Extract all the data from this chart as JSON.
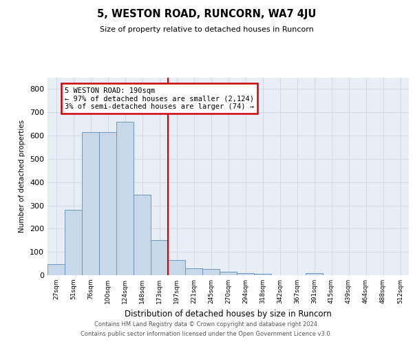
{
  "title": "5, WESTON ROAD, RUNCORN, WA7 4JU",
  "subtitle": "Size of property relative to detached houses in Runcorn",
  "xlabel": "Distribution of detached houses by size in Runcorn",
  "ylabel": "Number of detached properties",
  "bar_labels": [
    "27sqm",
    "51sqm",
    "76sqm",
    "100sqm",
    "124sqm",
    "148sqm",
    "173sqm",
    "197sqm",
    "221sqm",
    "245sqm",
    "270sqm",
    "294sqm",
    "318sqm",
    "342sqm",
    "367sqm",
    "391sqm",
    "415sqm",
    "439sqm",
    "464sqm",
    "488sqm",
    "512sqm"
  ],
  "bar_values": [
    46,
    280,
    615,
    615,
    660,
    347,
    150,
    65,
    30,
    27,
    14,
    10,
    7,
    0,
    0,
    10,
    0,
    0,
    0,
    0,
    0
  ],
  "bar_color": "#c8d8e8",
  "bar_edge_color": "#5b8db8",
  "property_line_x": 7.0,
  "annotation_text": "5 WESTON ROAD: 190sqm\n← 97% of detached houses are smaller (2,124)\n3% of semi-detached houses are larger (74) →",
  "annotation_box_color": "#ffffff",
  "annotation_box_edge": "#cc0000",
  "line_color": "#cc0000",
  "ylim": [
    0,
    850
  ],
  "yticks": [
    0,
    100,
    200,
    300,
    400,
    500,
    600,
    700,
    800
  ],
  "grid_color": "#d0d8e8",
  "axes_background": "#e8eef6",
  "footer_line1": "Contains HM Land Registry data © Crown copyright and database right 2024.",
  "footer_line2": "Contains public sector information licensed under the Open Government Licence v3.0."
}
